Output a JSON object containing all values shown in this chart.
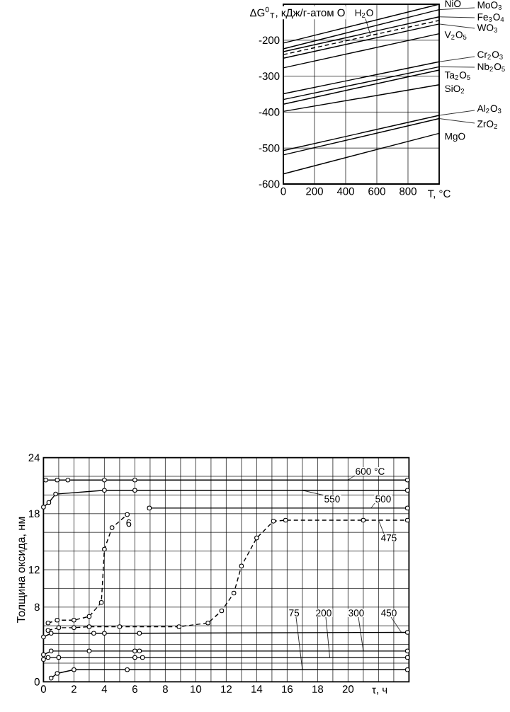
{
  "chart_data": [
    {
      "type": "line",
      "ylabel": "ΔG$^{0}$$_{T}$, кДж/г-атом O",
      "xlabel": "T, °C",
      "xlim": [
        0,
        1000
      ],
      "ylim": [
        -600,
        -100
      ],
      "xticks": [
        0,
        200,
        400,
        600,
        800,
        {
          "value": 1000,
          "label": null
        }
      ],
      "yticks": [
        -600,
        -500,
        -400,
        -300,
        -200,
        {
          "value": -100,
          "label": null
        }
      ],
      "grid": true,
      "legend": "right",
      "series": [
        {
          "name": "NiO",
          "color": "#000000",
          "x": [
            0,
            1000
          ],
          "values": [
            -208,
            -100
          ]
        },
        {
          "name": "MoO$_{3}$",
          "color": "#000000",
          "x": [
            0,
            1000
          ],
          "values": [
            -224,
            -115
          ]
        },
        {
          "name": "Fe$_{3}$O$_{4}$",
          "color": "#000000",
          "x": [
            0,
            1000
          ],
          "values": [
            -232,
            -135
          ]
        },
        {
          "name": "H$_{2}$O",
          "color": "#000000",
          "line_style": "dashed",
          "x": [
            0,
            1000
          ],
          "values": [
            -240,
            -145
          ]
        },
        {
          "name": "WO$_{3}$",
          "color": "#000000",
          "x": [
            0,
            1000
          ],
          "values": [
            -250,
            -155
          ]
        },
        {
          "name": "V$_{2}$O$_{5}$",
          "color": "#000000",
          "x": [
            0,
            1000
          ],
          "values": [
            -277,
            -182
          ]
        },
        {
          "name": "Cr$_{2}$O$_{3}$",
          "color": "#000000",
          "x": [
            0,
            1000
          ],
          "values": [
            -349,
            -260
          ]
        },
        {
          "name": "Nb$_{2}$O$_{5}$",
          "color": "#000000",
          "x": [
            0,
            1000
          ],
          "values": [
            -365,
            -274
          ]
        },
        {
          "name": "Ta$_{2}$O$_{5}$",
          "color": "#000000",
          "x": [
            0,
            1000
          ],
          "values": [
            -378,
            -283
          ]
        },
        {
          "name": "SiO$_{2}$",
          "color": "#000000",
          "x": [
            0,
            1000
          ],
          "values": [
            -398,
            -324
          ]
        },
        {
          "name": "Al$_{2}$O$_{3}$",
          "color": "#000000",
          "x": [
            0,
            1000
          ],
          "values": [
            -507,
            -409
          ]
        },
        {
          "name": "ZrO$_{2}$",
          "color": "#000000",
          "x": [
            0,
            1000
          ],
          "values": [
            -519,
            -418
          ]
        },
        {
          "name": "MgO",
          "color": "#000000",
          "x": [
            0,
            1000
          ],
          "values": [
            -572,
            -459
          ]
        }
      ]
    },
    {
      "type": "line",
      "ylabel": "Толщина оксида, нм",
      "xlabel": "τ, ч",
      "xlim": [
        0,
        24
      ],
      "ylim": [
        0,
        24
      ],
      "marker": "circle",
      "grid": true,
      "legend": "top right",
      "xticks": [
        0,
        {
          "value": 1,
          "label": null
        },
        2,
        {
          "value": 3,
          "label": null
        },
        4,
        {
          "value": 5,
          "label": null
        },
        6,
        {
          "value": 7,
          "label": null
        },
        8,
        {
          "value": 9,
          "label": null
        },
        10,
        {
          "value": 11,
          "label": null
        },
        12,
        {
          "value": 13,
          "label": null
        },
        14,
        {
          "value": 15,
          "label": null
        },
        16,
        {
          "value": 17,
          "label": null
        },
        18,
        {
          "value": 19,
          "label": null
        },
        20,
        {
          "value": 21,
          "label": null
        },
        {
          "value": 22,
          "label": null
        },
        {
          "value": 23,
          "label": null
        },
        {
          "value": 24,
          "label": null
        }
      ],
      "yticks": [
        0,
        {
          "value": 2,
          "label": null
        },
        {
          "value": 4,
          "label": null
        },
        {
          "value": 6,
          "label": null
        },
        8,
        {
          "value": 10,
          "label": null
        },
        12,
        {
          "value": 14,
          "label": null
        },
        {
          "value": 16,
          "label": null
        },
        18,
        {
          "value": 20,
          "label": null
        },
        {
          "value": 22,
          "label": null
        },
        24
      ],
      "annotations": [
        {
          "text": "6",
          "x": 5.6,
          "y": 17
        }
      ],
      "series": [
        {
          "name": "600 °C",
          "color": "#000000",
          "x": [
            0.15,
            0.9,
            1.6,
            4,
            6,
            23.9
          ],
          "values": [
            21.6,
            21.6,
            21.6,
            21.6,
            21.6,
            21.6
          ]
        },
        {
          "name": "550",
          "color": "#000000",
          "x": [
            0,
            0.35,
            0.8,
            4,
            6,
            23.9
          ],
          "values": [
            18.7,
            19.2,
            20.1,
            20.5,
            20.5,
            20.5
          ]
        },
        {
          "color": "#000000",
          "line_style": "dashed",
          "x": [
            0.3,
            0.9,
            2,
            3,
            3.8,
            4,
            4.5,
            5.5
          ],
          "values": [
            6.3,
            6.6,
            6.6,
            7.0,
            8.5,
            14.2,
            16.5,
            17.9
          ]
        },
        {
          "name": "500",
          "color": "#000000",
          "x": [
            6.95,
            23.9
          ],
          "values": [
            18.6,
            18.6
          ]
        },
        {
          "name": "475",
          "color": "#000000",
          "line_style": "dashed",
          "x": [
            0.3,
            1,
            2,
            3,
            5,
            8.9,
            10.8,
            11.7,
            12.5,
            13,
            14,
            15.1,
            15.9,
            21,
            23.9
          ],
          "values": [
            5.5,
            5.8,
            5.8,
            5.9,
            5.9,
            5.9,
            6.3,
            7.6,
            9.5,
            12.4,
            15.4,
            17.2,
            17.3,
            17.3,
            17.3
          ]
        },
        {
          "name": "450",
          "color": "#000000",
          "x": [
            0,
            0.5,
            3.3,
            4,
            6.3,
            23.9
          ],
          "values": [
            4.8,
            5.2,
            5.2,
            5.2,
            5.2,
            5.3
          ]
        },
        {
          "name": "300",
          "color": "#000000",
          "x": [
            0,
            0.5,
            3,
            6,
            6.3,
            23.9
          ],
          "values": [
            2.9,
            3.3,
            3.3,
            3.3,
            3.3,
            3.3
          ]
        },
        {
          "name": "200",
          "color": "#000000",
          "x": [
            0,
            0.3,
            1,
            6,
            6.5,
            23.9
          ],
          "values": [
            2.4,
            2.6,
            2.6,
            2.6,
            2.6,
            2.6
          ]
        },
        {
          "name": "75",
          "color": "#000000",
          "x": [
            0.5,
            0.9,
            2,
            5.5,
            23.9
          ],
          "values": [
            0.4,
            0.9,
            1.3,
            1.3,
            1.3
          ]
        }
      ]
    }
  ]
}
